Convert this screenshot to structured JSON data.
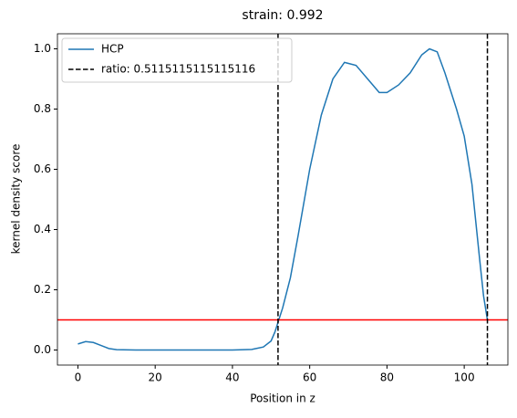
{
  "chart_data": {
    "type": "line",
    "title": "strain: 0.992",
    "xlabel": "Position in z",
    "ylabel": "kernel density score",
    "x": [
      0,
      2,
      4,
      6,
      8,
      10,
      15,
      20,
      30,
      40,
      45,
      48,
      50,
      51,
      52,
      53,
      55,
      57,
      60,
      63,
      66,
      69,
      72,
      75,
      78,
      80,
      83,
      86,
      89,
      91,
      93,
      95,
      98,
      100,
      102,
      104,
      105,
      106
    ],
    "series": [
      {
        "name": "HCP",
        "color": "#1f77b4",
        "values": [
          0.02,
          0.028,
          0.025,
          0.015,
          0.005,
          0.001,
          0,
          0,
          0,
          0,
          0.002,
          0.01,
          0.03,
          0.06,
          0.1,
          0.14,
          0.24,
          0.38,
          0.6,
          0.78,
          0.9,
          0.955,
          0.945,
          0.9,
          0.855,
          0.855,
          0.88,
          0.92,
          0.98,
          1.0,
          0.99,
          0.92,
          0.8,
          0.71,
          0.55,
          0.3,
          0.18,
          0.1
        ]
      }
    ],
    "vlines": {
      "name": "ratio: 0.5115115115115116",
      "color": "#000000",
      "values": [
        51.8,
        106
      ]
    },
    "hline": {
      "value": 0.1,
      "color": "#ff0000"
    },
    "xlim": [
      -5.3,
      111.3
    ],
    "ylim": [
      -0.05,
      1.05
    ],
    "xticks": [
      0,
      20,
      40,
      60,
      80,
      100
    ],
    "yticks": [
      {
        "value": 0,
        "label": "0.0"
      },
      0.2,
      0.4,
      0.6,
      0.8,
      {
        "value": 1,
        "label": "1.0"
      }
    ],
    "legend": "upper left"
  }
}
